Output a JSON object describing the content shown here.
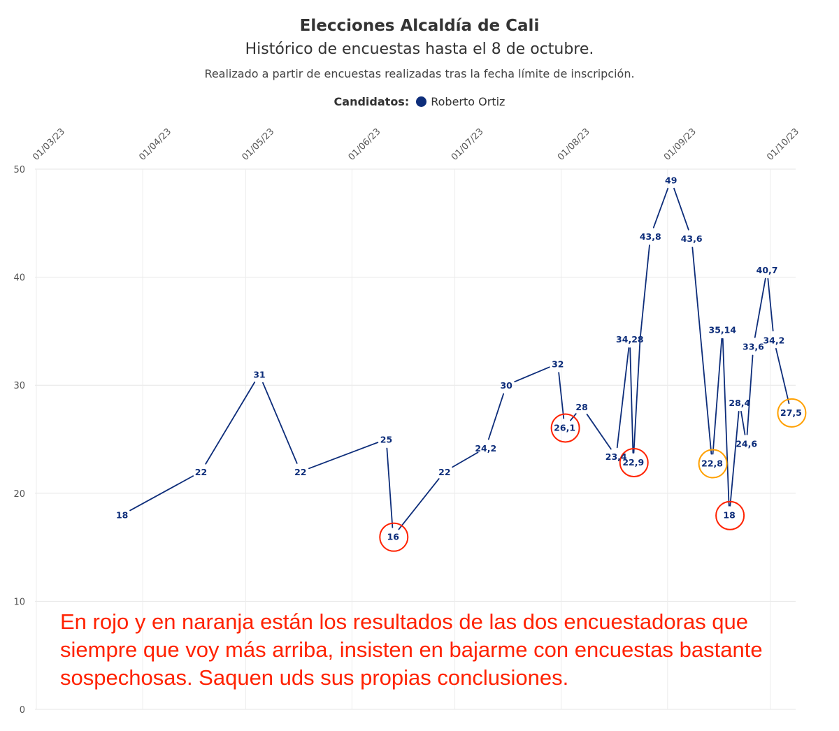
{
  "header": {
    "title": "Elecciones Alcaldía de Cali",
    "subtitle": "Histórico de encuestas hasta el 8 de octubre.",
    "note": "Realizado a partir de encuestas realizadas tras la fecha límite de inscripción."
  },
  "legend": {
    "label": "Candidatos:",
    "series_name": "Roberto Ortiz",
    "color": "#0d2d7a"
  },
  "annotation": "En rojo y en naranja están los resultados de las dos encuestadoras que siempre que voy más arriba, insisten en bajarme con encuestas bastante sospechosas. Saquen uds sus propias conclusiones.",
  "chart_data": {
    "type": "line",
    "x_axis": {
      "type": "date",
      "range": [
        "2023-03-01",
        "2023-10-01"
      ],
      "ticks": [
        "2023-03-01",
        "2023-04-01",
        "2023-05-01",
        "2023-06-01",
        "2023-07-01",
        "2023-08-01",
        "2023-09-01",
        "2023-10-01"
      ],
      "tick_labels": [
        "01/03/23",
        "01/04/23",
        "01/05/23",
        "01/06/23",
        "01/07/23",
        "01/08/23",
        "01/09/23",
        "01/10/23"
      ]
    },
    "y_axis": {
      "range": [
        0,
        50
      ],
      "ticks": [
        0,
        10,
        20,
        30,
        40,
        50
      ],
      "tick_labels": [
        "0",
        "10",
        "20",
        "30",
        "40",
        "50"
      ]
    },
    "grid": true,
    "legend_position": "top-center",
    "series": [
      {
        "name": "Roberto Ortiz",
        "color": "#0d2d7a",
        "points": [
          {
            "x": "2023-03-26",
            "y": 18,
            "label": "18"
          },
          {
            "x": "2023-04-18",
            "y": 22,
            "label": "22"
          },
          {
            "x": "2023-05-05",
            "y": 31,
            "label": "31"
          },
          {
            "x": "2023-05-17",
            "y": 22,
            "label": "22"
          },
          {
            "x": "2023-06-11",
            "y": 25,
            "label": "25"
          },
          {
            "x": "2023-06-13",
            "y": 16,
            "label": "16",
            "highlight": "red"
          },
          {
            "x": "2023-06-28",
            "y": 22,
            "label": "22"
          },
          {
            "x": "2023-07-10",
            "y": 24.2,
            "label": "24,2"
          },
          {
            "x": "2023-07-16",
            "y": 30,
            "label": "30"
          },
          {
            "x": "2023-07-31",
            "y": 32,
            "label": "32"
          },
          {
            "x": "2023-08-02",
            "y": 26.1,
            "label": "26,1",
            "highlight": "red"
          },
          {
            "x": "2023-08-07",
            "y": 28,
            "label": "28"
          },
          {
            "x": "2023-08-17",
            "y": 23.4,
            "label": "23,4"
          },
          {
            "x": "2023-08-21",
            "y": 34.28,
            "label": "34,28"
          },
          {
            "x": "2023-08-22",
            "y": 22.9,
            "label": "22,9",
            "highlight": "red"
          },
          {
            "x": "2023-08-24",
            "y": 34.28,
            "label": ""
          },
          {
            "x": "2023-08-27",
            "y": 43.8,
            "label": "43,8"
          },
          {
            "x": "2023-09-02",
            "y": 49,
            "label": "49"
          },
          {
            "x": "2023-09-08",
            "y": 43.6,
            "label": "43,6"
          },
          {
            "x": "2023-09-14",
            "y": 22.8,
            "label": "22,8",
            "highlight": "orange"
          },
          {
            "x": "2023-09-17",
            "y": 35.14,
            "label": "35,14"
          },
          {
            "x": "2023-09-19",
            "y": 18,
            "label": "18",
            "highlight": "red"
          },
          {
            "x": "2023-09-22",
            "y": 28.4,
            "label": "28,4"
          },
          {
            "x": "2023-09-24",
            "y": 24.6,
            "label": "24,6"
          },
          {
            "x": "2023-09-26",
            "y": 33.6,
            "label": "33,6"
          },
          {
            "x": "2023-09-30",
            "y": 40.7,
            "label": "40,7"
          },
          {
            "x": "2023-10-02",
            "y": 34.2,
            "label": "34,2"
          },
          {
            "x": "2023-10-07",
            "y": 27.5,
            "label": "27,5",
            "highlight": "orange"
          }
        ]
      }
    ],
    "highlight_colors": {
      "red": "#ff2200",
      "orange": "#ffa000"
    }
  }
}
